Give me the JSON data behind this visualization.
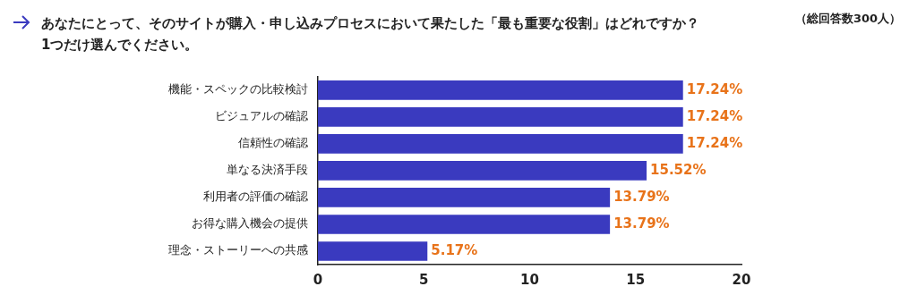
{
  "chart_data": {
    "type": "bar",
    "orientation": "horizontal",
    "title": "あなたにとって、そのサイトが購入・申し込みプロセスにおいて果たした「最も重要な役割」はどれですか？\n1つだけ選んでください。",
    "annotations": [
      "（総回答数300人）"
    ],
    "categories": [
      "機能・スペックの比較検討",
      "ビジュアルの確認",
      "信頼性の確認",
      "単なる決済手段",
      "利用者の評価の確認",
      "お得な購入機会の提供",
      "理念・ストーリーへの共感"
    ],
    "values": [
      17.24,
      17.24,
      17.24,
      15.52,
      13.79,
      13.79,
      5.17
    ],
    "color": "#3a3abf",
    "value_labels": [
      "17.24%",
      "17.24%",
      "17.24%",
      "15.52%",
      "13.79%",
      "13.79%",
      "5.17%"
    ],
    "xlim": [
      0,
      20
    ],
    "xticks": [
      0,
      5,
      10,
      15,
      20
    ],
    "grid": false,
    "legend": false
  }
}
